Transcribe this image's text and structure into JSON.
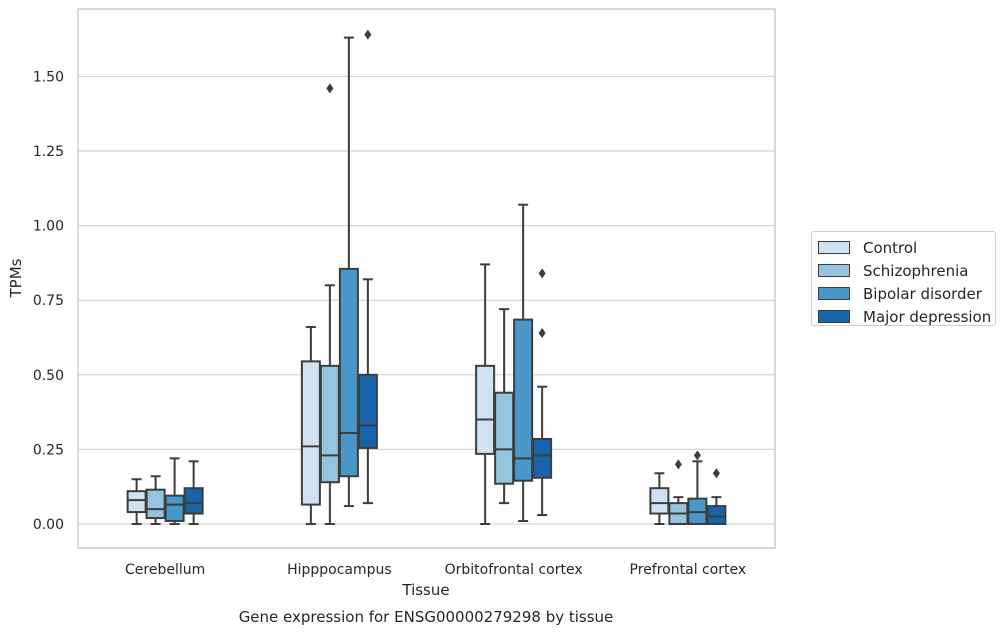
{
  "chart_data": {
    "type": "box",
    "title": "",
    "caption": "Gene expression for ENSG00000279298 by tissue",
    "xlabel": "Tissue",
    "ylabel": "TPMs",
    "categories": [
      "Cerebellum",
      "Hipppocampus",
      "Orbitofrontal cortex",
      "Prefrontal cortex"
    ],
    "ylim": [
      -0.08,
      1.73
    ],
    "yticks": [
      0.0,
      0.25,
      0.5,
      0.75,
      1.0,
      1.25,
      1.5
    ],
    "ytick_labels": [
      "0.00",
      "0.25",
      "0.50",
      "0.75",
      "1.00",
      "1.25",
      "1.50"
    ],
    "grid": "horizontal",
    "legend_position": "right, outside plot",
    "series": [
      {
        "name": "Control",
        "color": "#d0e1f2",
        "boxes": [
          {
            "whisker_low": 0.0,
            "q1": 0.04,
            "median": 0.08,
            "q3": 0.11,
            "whisker_high": 0.15,
            "outliers": []
          },
          {
            "whisker_low": 0.0,
            "q1": 0.065,
            "median": 0.26,
            "q3": 0.545,
            "whisker_high": 0.66,
            "outliers": []
          },
          {
            "whisker_low": 0.0,
            "q1": 0.235,
            "median": 0.35,
            "q3": 0.53,
            "whisker_high": 0.87,
            "outliers": []
          },
          {
            "whisker_low": 0.0,
            "q1": 0.035,
            "median": 0.07,
            "q3": 0.12,
            "whisker_high": 0.17,
            "outliers": []
          }
        ]
      },
      {
        "name": "Schizophrenia",
        "color": "#94c4df",
        "boxes": [
          {
            "whisker_low": 0.0,
            "q1": 0.02,
            "median": 0.05,
            "q3": 0.115,
            "whisker_high": 0.16,
            "outliers": []
          },
          {
            "whisker_low": 0.0,
            "q1": 0.14,
            "median": 0.23,
            "q3": 0.53,
            "whisker_high": 0.8,
            "outliers": [
              1.46
            ]
          },
          {
            "whisker_low": 0.07,
            "q1": 0.135,
            "median": 0.25,
            "q3": 0.44,
            "whisker_high": 0.72,
            "outliers": []
          },
          {
            "whisker_low": 0.0,
            "q1": 0.0,
            "median": 0.035,
            "q3": 0.07,
            "whisker_high": 0.09,
            "outliers": [
              0.2
            ]
          }
        ]
      },
      {
        "name": "Bipolar disorder",
        "color": "#4a98c9",
        "boxes": [
          {
            "whisker_low": 0.0,
            "q1": 0.01,
            "median": 0.065,
            "q3": 0.095,
            "whisker_high": 0.22,
            "outliers": []
          },
          {
            "whisker_low": 0.06,
            "q1": 0.16,
            "median": 0.305,
            "q3": 0.855,
            "whisker_high": 1.63,
            "outliers": []
          },
          {
            "whisker_low": 0.01,
            "q1": 0.145,
            "median": 0.22,
            "q3": 0.685,
            "whisker_high": 1.07,
            "outliers": []
          },
          {
            "whisker_low": 0.0,
            "q1": 0.0,
            "median": 0.04,
            "q3": 0.085,
            "whisker_high": 0.21,
            "outliers": [
              0.23
            ]
          }
        ]
      },
      {
        "name": "Major depression",
        "color": "#1764ab",
        "boxes": [
          {
            "whisker_low": 0.0,
            "q1": 0.035,
            "median": 0.07,
            "q3": 0.12,
            "whisker_high": 0.21,
            "outliers": []
          },
          {
            "whisker_low": 0.07,
            "q1": 0.255,
            "median": 0.33,
            "q3": 0.5,
            "whisker_high": 0.82,
            "outliers": [
              1.64
            ]
          },
          {
            "whisker_low": 0.03,
            "q1": 0.155,
            "median": 0.23,
            "q3": 0.285,
            "whisker_high": 0.46,
            "outliers": [
              0.64,
              0.84
            ]
          },
          {
            "whisker_low": 0.0,
            "q1": 0.0,
            "median": 0.025,
            "q3": 0.06,
            "whisker_high": 0.09,
            "outliers": [
              0.17
            ]
          }
        ]
      }
    ]
  }
}
